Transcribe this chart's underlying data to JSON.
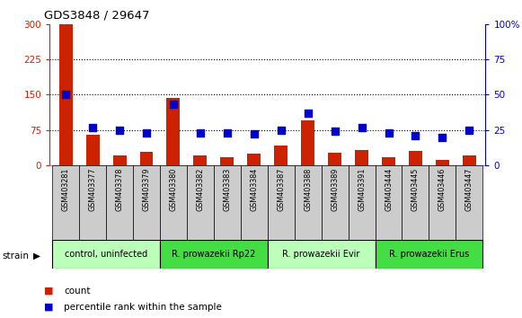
{
  "title": "GDS3848 / 29647",
  "samples": [
    "GSM403281",
    "GSM403377",
    "GSM403378",
    "GSM403379",
    "GSM403380",
    "GSM403382",
    "GSM403383",
    "GSM403384",
    "GSM403387",
    "GSM403388",
    "GSM403389",
    "GSM403391",
    "GSM403444",
    "GSM403445",
    "GSM403446",
    "GSM403447"
  ],
  "counts": [
    300,
    65,
    22,
    28,
    143,
    22,
    18,
    25,
    42,
    95,
    27,
    33,
    17,
    30,
    11,
    22
  ],
  "percentiles": [
    50,
    27,
    25,
    23,
    43,
    23,
    23,
    22,
    25,
    37,
    24,
    27,
    23,
    21,
    20,
    25
  ],
  "bar_color": "#cc2200",
  "dot_color": "#0000cc",
  "ylim_left": [
    0,
    300
  ],
  "ylim_right": [
    0,
    100
  ],
  "yticks_left": [
    0,
    75,
    150,
    225,
    300
  ],
  "yticks_right": [
    0,
    25,
    50,
    75,
    100
  ],
  "hlines": [
    75,
    150,
    225
  ],
  "groups": [
    {
      "label": "control, uninfected",
      "start": 0,
      "end": 4,
      "color": "#bbffbb"
    },
    {
      "label": "R. prowazekii Rp22",
      "start": 4,
      "end": 8,
      "color": "#44dd44"
    },
    {
      "label": "R. prowazekii Evir",
      "start": 8,
      "end": 12,
      "color": "#bbffbb"
    },
    {
      "label": "R. prowazekii Erus",
      "start": 12,
      "end": 16,
      "color": "#44dd44"
    }
  ],
  "legend_items": [
    {
      "label": "count",
      "color": "#cc2200"
    },
    {
      "label": "percentile rank within the sample",
      "color": "#0000cc"
    }
  ],
  "strain_label": "strain",
  "bg_color": "#ffffff",
  "tick_label_color_left": "#cc2200",
  "tick_label_color_right": "#0000cc",
  "bar_width": 0.5,
  "dot_size": 28,
  "sample_box_color": "#cccccc",
  "spine_color": "#888888"
}
